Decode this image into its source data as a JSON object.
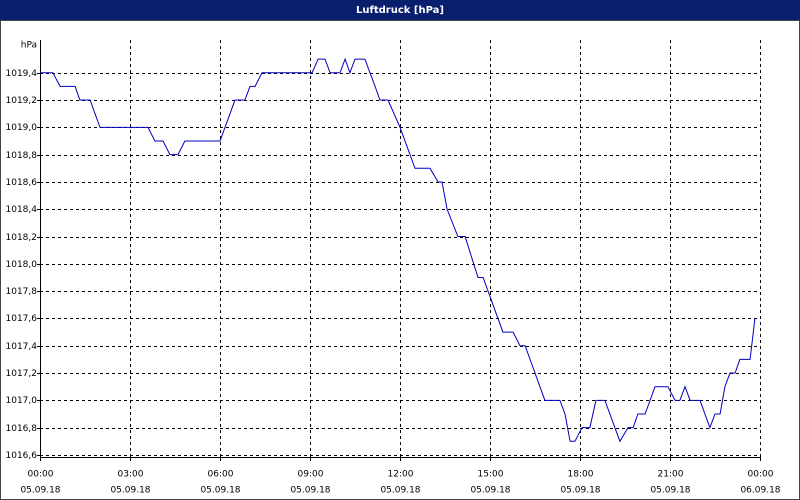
{
  "chart_data": {
    "type": "line",
    "title": "Luftdruck [hPa]",
    "y_label": "hPa",
    "x": [
      0,
      0.43,
      0.67,
      1.17,
      1.33,
      1.67,
      2.0,
      3.6,
      3.83,
      4.1,
      4.33,
      4.6,
      4.83,
      6.0,
      6.5,
      6.83,
      7.0,
      7.17,
      7.4,
      9.07,
      9.27,
      9.5,
      9.67,
      10.0,
      10.17,
      10.33,
      10.5,
      10.83,
      11.17,
      11.33,
      11.6,
      12.0,
      12.5,
      13.0,
      13.27,
      13.4,
      13.57,
      13.93,
      14.17,
      14.6,
      14.77,
      15.43,
      15.77,
      16.0,
      16.17,
      16.83,
      17.33,
      17.5,
      17.67,
      17.83,
      18.07,
      18.33,
      18.53,
      18.83,
      19.33,
      19.6,
      19.77,
      19.93,
      20.17,
      20.5,
      20.93,
      21.17,
      21.33,
      21.5,
      21.67,
      22.0,
      22.33,
      22.5,
      22.67,
      22.83,
      23.0,
      23.17,
      23.33,
      23.67,
      23.83
    ],
    "series": [
      {
        "name": "Luftdruck",
        "color": "#0000c0",
        "values": [
          1019.4,
          1019.4,
          1019.3,
          1019.3,
          1019.2,
          1019.2,
          1019.0,
          1019.0,
          1018.9,
          1018.9,
          1018.8,
          1018.8,
          1018.9,
          1018.9,
          1019.2,
          1019.2,
          1019.3,
          1019.3,
          1019.4,
          1019.4,
          1019.5,
          1019.5,
          1019.4,
          1019.4,
          1019.5,
          1019.4,
          1019.5,
          1019.5,
          1019.3,
          1019.2,
          1019.2,
          1019.0,
          1018.7,
          1018.7,
          1018.6,
          1018.6,
          1018.4,
          1018.2,
          1018.2,
          1017.9,
          1017.9,
          1017.5,
          1017.5,
          1017.4,
          1017.4,
          1017.0,
          1017.0,
          1016.9,
          1016.7,
          1016.7,
          1016.8,
          1016.8,
          1017.0,
          1017.0,
          1016.7,
          1016.8,
          1016.8,
          1016.9,
          1016.9,
          1017.1,
          1017.1,
          1017.0,
          1017.0,
          1017.1,
          1017.0,
          1017.0,
          1016.8,
          1016.9,
          1016.9,
          1017.1,
          1017.2,
          1017.2,
          1017.3,
          1017.3,
          1017.6
        ]
      }
    ],
    "xlim": [
      0,
      24
    ],
    "xticks": [
      {
        "value": 0,
        "label": "00:00",
        "date": "05.09.18"
      },
      {
        "value": 3,
        "label": "03:00",
        "date": "05.09.18"
      },
      {
        "value": 6,
        "label": "06:00",
        "date": "05.09.18"
      },
      {
        "value": 9,
        "label": "09:00",
        "date": "05.09.18"
      },
      {
        "value": 12,
        "label": "12:00",
        "date": "05.09.18"
      },
      {
        "value": 15,
        "label": "15:00",
        "date": "05.09.18"
      },
      {
        "value": 18,
        "label": "18:00",
        "date": "05.09.18"
      },
      {
        "value": 21,
        "label": "21:00",
        "date": "05.09.18"
      },
      {
        "value": 24,
        "label": "00:00",
        "date": "06.09.18"
      }
    ],
    "ylim": [
      1016.585,
      1019.64
    ],
    "yticks": [
      {
        "value": 1016.6,
        "label": "1016,6"
      },
      {
        "value": 1016.8,
        "label": "1016,8"
      },
      {
        "value": 1017.0,
        "label": "1017,0"
      },
      {
        "value": 1017.2,
        "label": "1017,2"
      },
      {
        "value": 1017.4,
        "label": "1017,4"
      },
      {
        "value": 1017.6,
        "label": "1017,6"
      },
      {
        "value": 1017.8,
        "label": "1017,8"
      },
      {
        "value": 1018.0,
        "label": "1018,0"
      },
      {
        "value": 1018.2,
        "label": "1018,2"
      },
      {
        "value": 1018.4,
        "label": "1018,4"
      },
      {
        "value": 1018.6,
        "label": "1018,6"
      },
      {
        "value": 1018.8,
        "label": "1018,8"
      },
      {
        "value": 1019.0,
        "label": "1019,0"
      },
      {
        "value": 1019.2,
        "label": "1019,2"
      },
      {
        "value": 1019.4,
        "label": "1019,4"
      }
    ],
    "grid": true
  }
}
